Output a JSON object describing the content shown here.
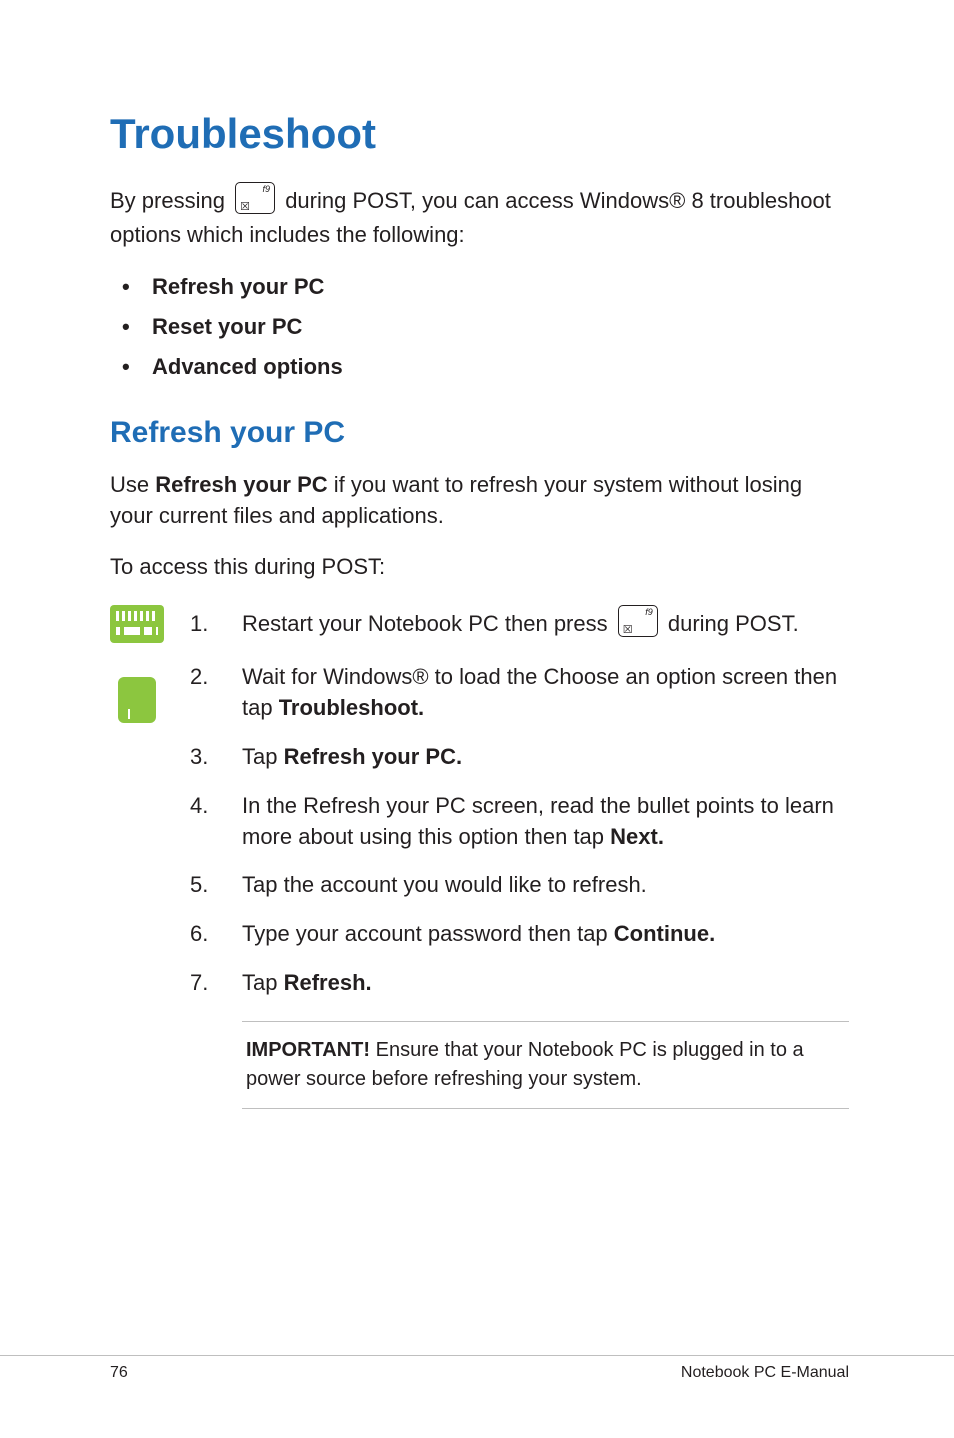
{
  "colors": {
    "heading_blue": "#1f6db5",
    "accent_green": "#8cc63f",
    "text": "#231f20",
    "rule_gray": "#bfbfbf",
    "background": "#ffffff"
  },
  "typography": {
    "title_fontsize_pt": 32,
    "subheading_fontsize_pt": 23,
    "body_fontsize_pt": 17,
    "footer_fontsize_pt": 12
  },
  "title": "Troubleshoot",
  "intro_before_key": "By pressing ",
  "intro_after_key": " during POST, you can access Windows® 8 troubleshoot options which includes the following:",
  "options": [
    "Refresh your PC",
    "Reset your PC",
    "Advanced options"
  ],
  "subheading": "Refresh your PC",
  "refresh_para_prefix": "Use ",
  "refresh_para_bold": "Refresh your PC",
  "refresh_para_suffix": " if you want to refresh your system without losing your current files and applications.",
  "access_line": "To access this during POST:",
  "steps": {
    "s1_before": "Restart your Notebook PC then press ",
    "s1_after": " during POST.",
    "s2_before": "Wait for Windows® to load the Choose an option screen then tap ",
    "s2_bold": "Troubleshoot.",
    "s3_before": "Tap ",
    "s3_bold": "Refresh your PC.",
    "s4_before": "In the Refresh your PC screen, read the bullet points to learn more about using this option then tap ",
    "s4_bold": "Next.",
    "s5": "Tap the account you would like to refresh.",
    "s6_before": "Type your account password then tap ",
    "s6_bold": "Continue.",
    "s7_before": "Tap ",
    "s7_bold": "Refresh."
  },
  "note_label": "IMPORTANT!",
  "note_text": " Ensure that your Notebook PC is plugged in to a power source before refreshing your system.",
  "footer": {
    "page_number": "76",
    "doc_title": "Notebook PC E-Manual"
  }
}
